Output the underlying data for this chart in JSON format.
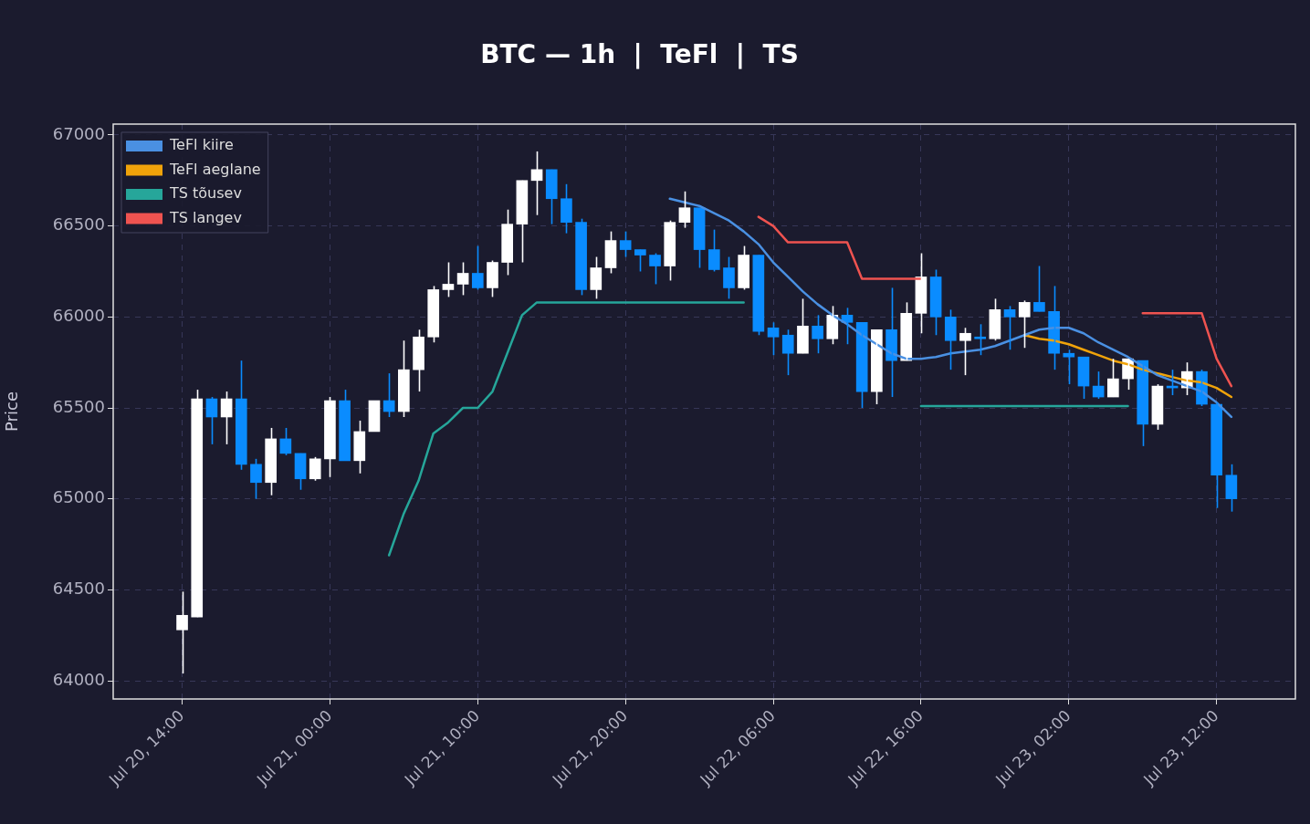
{
  "chart_data": {
    "type": "candlestick",
    "title": "BTC — 1h  |  TeFl  |  TS",
    "ylabel": "Price",
    "x": [
      "--07-20T14:00",
      "--07-20T15:00",
      "--07-20T16:00",
      "--07-20T17:00",
      "--07-20T18:00",
      "--07-20T19:00",
      "--07-20T20:00",
      "--07-20T21:00",
      "--07-20T22:00",
      "--07-20T23:00",
      "--07-21T00:00",
      "--07-21T01:00",
      "--07-21T02:00",
      "--07-21T03:00",
      "--07-21T04:00",
      "--07-21T05:00",
      "--07-21T06:00",
      "--07-21T07:00",
      "--07-21T08:00",
      "--07-21T09:00",
      "--07-21T10:00",
      "--07-21T11:00",
      "--07-21T12:00",
      "--07-21T13:00",
      "--07-21T14:00",
      "--07-21T15:00",
      "--07-21T16:00",
      "--07-21T17:00",
      "--07-21T18:00",
      "--07-21T19:00",
      "--07-21T20:00",
      "--07-21T21:00",
      "--07-21T22:00",
      "--07-21T23:00",
      "--07-22T00:00",
      "--07-22T01:00",
      "--07-22T02:00",
      "--07-22T03:00",
      "--07-22T04:00",
      "--07-22T05:00",
      "--07-22T06:00",
      "--07-22T07:00",
      "--07-22T08:00",
      "--07-22T09:00",
      "--07-22T10:00",
      "--07-22T11:00",
      "--07-22T12:00",
      "--07-22T13:00",
      "--07-22T14:00",
      "--07-22T15:00",
      "--07-22T16:00",
      "--07-22T17:00",
      "--07-22T18:00",
      "--07-22T19:00",
      "--07-22T20:00",
      "--07-22T21:00",
      "--07-22T22:00",
      "--07-22T23:00",
      "--07-23T00:00",
      "--07-23T01:00",
      "--07-23T02:00",
      "--07-23T03:00",
      "--07-23T04:00",
      "--07-23T05:00",
      "--07-23T06:00",
      "--07-23T07:00",
      "--07-23T08:00",
      "--07-23T09:00",
      "--07-23T10:00",
      "--07-23T11:00",
      "--07-23T12:00",
      "--07-23T13:00"
    ],
    "ohlc": [
      [
        64280,
        64490,
        64040,
        64360
      ],
      [
        64350,
        65600,
        64350,
        65550
      ],
      [
        65550,
        65560,
        65300,
        65450
      ],
      [
        65450,
        65590,
        65300,
        65550
      ],
      [
        65550,
        65760,
        65160,
        65190
      ],
      [
        65190,
        65220,
        65000,
        65090
      ],
      [
        65090,
        65390,
        65020,
        65330
      ],
      [
        65330,
        65390,
        65240,
        65250
      ],
      [
        65250,
        65250,
        65050,
        65110
      ],
      [
        65110,
        65230,
        65100,
        65220
      ],
      [
        65220,
        65560,
        65120,
        65540
      ],
      [
        65540,
        65600,
        65210,
        65210
      ],
      [
        65210,
        65430,
        65140,
        65370
      ],
      [
        65370,
        65540,
        65370,
        65540
      ],
      [
        65540,
        65690,
        65450,
        65480
      ],
      [
        65480,
        65870,
        65450,
        65710
      ],
      [
        65710,
        65930,
        65590,
        65890
      ],
      [
        65890,
        66170,
        65860,
        66150
      ],
      [
        66150,
        66300,
        66110,
        66180
      ],
      [
        66180,
        66300,
        66120,
        66240
      ],
      [
        66240,
        66390,
        66150,
        66160
      ],
      [
        66160,
        66310,
        66110,
        66300
      ],
      [
        66300,
        66590,
        66230,
        66510
      ],
      [
        66510,
        66750,
        66300,
        66750
      ],
      [
        66750,
        66910,
        66560,
        66810
      ],
      [
        66810,
        66810,
        66510,
        66650
      ],
      [
        66650,
        66730,
        66460,
        66520
      ],
      [
        66520,
        66540,
        66120,
        66150
      ],
      [
        66150,
        66330,
        66100,
        66270
      ],
      [
        66270,
        66470,
        66240,
        66420
      ],
      [
        66420,
        66470,
        66330,
        66370
      ],
      [
        66370,
        66370,
        66250,
        66340
      ],
      [
        66340,
        66350,
        66180,
        66280
      ],
      [
        66280,
        66530,
        66200,
        66520
      ],
      [
        66520,
        66690,
        66490,
        66600
      ],
      [
        66600,
        66600,
        66270,
        66370
      ],
      [
        66370,
        66480,
        66250,
        66260
      ],
      [
        66270,
        66330,
        66100,
        66160
      ],
      [
        66160,
        66390,
        66150,
        66340
      ],
      [
        66340,
        66340,
        65900,
        65920
      ],
      [
        65940,
        65970,
        65790,
        65890
      ],
      [
        65900,
        65930,
        65680,
        65800
      ],
      [
        65800,
        66100,
        65800,
        65950
      ],
      [
        65950,
        66010,
        65800,
        65880
      ],
      [
        65880,
        66060,
        65850,
        66010
      ],
      [
        66010,
        66050,
        65850,
        65970
      ],
      [
        65970,
        65970,
        65500,
        65590
      ],
      [
        65590,
        65930,
        65520,
        65930
      ],
      [
        65930,
        66160,
        65560,
        65760
      ],
      [
        65760,
        66080,
        65760,
        66020
      ],
      [
        66020,
        66350,
        65910,
        66220
      ],
      [
        66220,
        66260,
        65900,
        66000
      ],
      [
        66000,
        66040,
        65710,
        65870
      ],
      [
        65870,
        65940,
        65680,
        65910
      ],
      [
        65890,
        65960,
        65790,
        65880
      ],
      [
        65880,
        66100,
        65870,
        66040
      ],
      [
        66040,
        66060,
        65820,
        66000
      ],
      [
        66000,
        66090,
        65830,
        66080
      ],
      [
        66080,
        66280,
        66030,
        66030
      ],
      [
        66030,
        66170,
        65710,
        65800
      ],
      [
        65800,
        65820,
        65630,
        65780
      ],
      [
        65780,
        65780,
        65550,
        65620
      ],
      [
        65620,
        65700,
        65550,
        65560
      ],
      [
        65560,
        65770,
        65560,
        65660
      ],
      [
        65660,
        65770,
        65600,
        65770
      ],
      [
        65760,
        65760,
        65290,
        65410
      ],
      [
        65410,
        65630,
        65380,
        65620
      ],
      [
        65620,
        65710,
        65570,
        65610
      ],
      [
        65610,
        65750,
        65570,
        65700
      ],
      [
        65700,
        65710,
        65510,
        65520
      ],
      [
        65520,
        65530,
        64950,
        65130
      ],
      [
        65130,
        65190,
        64930,
        65000
      ]
    ],
    "colors": [
      "#ffffff",
      "#ffffff",
      "#0a8cff",
      "#ffffff",
      "#0a8cff",
      "#0a8cff",
      "#ffffff",
      "#0a8cff",
      "#0a8cff",
      "#ffffff",
      "#ffffff",
      "#0a8cff",
      "#ffffff",
      "#ffffff",
      "#0a8cff",
      "#ffffff",
      "#ffffff",
      "#ffffff",
      "#ffffff",
      "#ffffff",
      "#0a8cff",
      "#ffffff",
      "#ffffff",
      "#ffffff",
      "#ffffff",
      "#0a8cff",
      "#0a8cff",
      "#0a8cff",
      "#ffffff",
      "#ffffff",
      "#0a8cff",
      "#0a8cff",
      "#0a8cff",
      "#ffffff",
      "#ffffff",
      "#0a8cff",
      "#0a8cff",
      "#0a8cff",
      "#ffffff",
      "#0a8cff",
      "#0a8cff",
      "#0a8cff",
      "#ffffff",
      "#0a8cff",
      "#ffffff",
      "#0a8cff",
      "#0a8cff",
      "#ffffff",
      "#0a8cff",
      "#ffffff",
      "#ffffff",
      "#0a8cff",
      "#0a8cff",
      "#ffffff",
      "#0a8cff",
      "#ffffff",
      "#0a8cff",
      "#ffffff",
      "#0a8cff",
      "#0a8cff",
      "#0a8cff",
      "#0a8cff",
      "#0a8cff",
      "#ffffff",
      "#ffffff",
      "#0a8cff",
      "#ffffff",
      "#0a8cff",
      "#ffffff",
      "#0a8cff",
      "#0a8cff",
      "#0a8cff"
    ],
    "series": [
      {
        "type": "line",
        "name": "TeFl kiire",
        "color": "#4a90e2",
        "values": [
          null,
          null,
          null,
          null,
          null,
          null,
          null,
          null,
          null,
          null,
          null,
          null,
          null,
          null,
          null,
          null,
          null,
          null,
          null,
          null,
          null,
          null,
          null,
          null,
          null,
          null,
          null,
          null,
          null,
          null,
          null,
          null,
          null,
          66650,
          66630,
          66610,
          66570,
          66530,
          66470,
          66400,
          66300,
          66220,
          66140,
          66070,
          66010,
          65960,
          65900,
          65850,
          65800,
          65770,
          65770,
          65780,
          65800,
          65810,
          65820,
          65840,
          65870,
          65900,
          65930,
          65940,
          65940,
          65910,
          65860,
          65820,
          65780,
          65730,
          65680,
          65650,
          65620,
          65590,
          65530,
          65450
        ]
      },
      {
        "type": "line",
        "name": "TeFl aeglane",
        "color": "#f0a30a",
        "values": [
          null,
          null,
          null,
          null,
          null,
          null,
          null,
          null,
          null,
          null,
          null,
          null,
          null,
          null,
          null,
          null,
          null,
          null,
          null,
          null,
          null,
          null,
          null,
          null,
          null,
          null,
          null,
          null,
          null,
          null,
          null,
          null,
          null,
          null,
          null,
          null,
          null,
          null,
          null,
          null,
          null,
          null,
          null,
          null,
          null,
          null,
          null,
          null,
          null,
          null,
          null,
          null,
          null,
          null,
          null,
          null,
          null,
          65900,
          65880,
          65870,
          65850,
          65820,
          65790,
          65760,
          65740,
          65710,
          65690,
          65670,
          65650,
          65640,
          65610,
          65560
        ]
      },
      {
        "type": "line",
        "name": "TS tõusev",
        "color": "#26a69a",
        "values": [
          null,
          null,
          null,
          null,
          null,
          null,
          null,
          null,
          null,
          null,
          null,
          null,
          null,
          null,
          64690,
          64920,
          65100,
          65360,
          65420,
          65500,
          65500,
          65590,
          65800,
          66010,
          66080,
          66080,
          66080,
          66080,
          66080,
          66080,
          66080,
          66080,
          66080,
          66080,
          66080,
          66080,
          66080,
          66080,
          66080,
          null,
          null,
          null,
          null,
          null,
          null,
          null,
          null,
          null,
          null,
          null,
          65510,
          65510,
          65510,
          65510,
          65510,
          65510,
          65510,
          65510,
          65510,
          65510,
          65510,
          65510,
          65510,
          65510,
          65510,
          null,
          null,
          null,
          null,
          null,
          null,
          null
        ]
      },
      {
        "type": "line",
        "name": "TS langev",
        "color": "#ef5350",
        "values": [
          null,
          null,
          null,
          null,
          null,
          null,
          null,
          null,
          null,
          null,
          null,
          null,
          null,
          null,
          null,
          null,
          null,
          null,
          null,
          null,
          null,
          null,
          null,
          null,
          null,
          null,
          null,
          null,
          null,
          null,
          null,
          null,
          null,
          null,
          null,
          null,
          null,
          null,
          null,
          66550,
          66500,
          66410,
          66410,
          66410,
          66410,
          66410,
          66210,
          66210,
          66210,
          66210,
          66210,
          null,
          null,
          null,
          null,
          null,
          null,
          null,
          null,
          null,
          null,
          null,
          null,
          null,
          null,
          66020,
          66020,
          66020,
          66020,
          66020,
          65770,
          65620
        ]
      }
    ],
    "xlim": [
      "--07-20T09:20",
      "--07-23T17:20"
    ],
    "xticks": [
      {
        "value": "--07-20T14:00",
        "label": "Jul 20, 14:00"
      },
      {
        "value": "--07-21T00:00",
        "label": "Jul 21, 00:00"
      },
      {
        "value": "--07-21T10:00",
        "label": "Jul 21, 10:00"
      },
      {
        "value": "--07-21T20:00",
        "label": "Jul 21, 20:00"
      },
      {
        "value": "--07-22T06:00",
        "label": "Jul 22, 06:00"
      },
      {
        "value": "--07-22T16:00",
        "label": "Jul 22, 16:00"
      },
      {
        "value": "--07-23T02:00",
        "label": "Jul 23, 02:00"
      },
      {
        "value": "--07-23T12:00",
        "label": "Jul 23, 12:00"
      }
    ],
    "ylim": [
      63900,
      67060
    ],
    "yticks": [
      64000,
      64500,
      65000,
      65500,
      66000,
      66500,
      67000
    ],
    "grid": true,
    "legend": "top left"
  }
}
